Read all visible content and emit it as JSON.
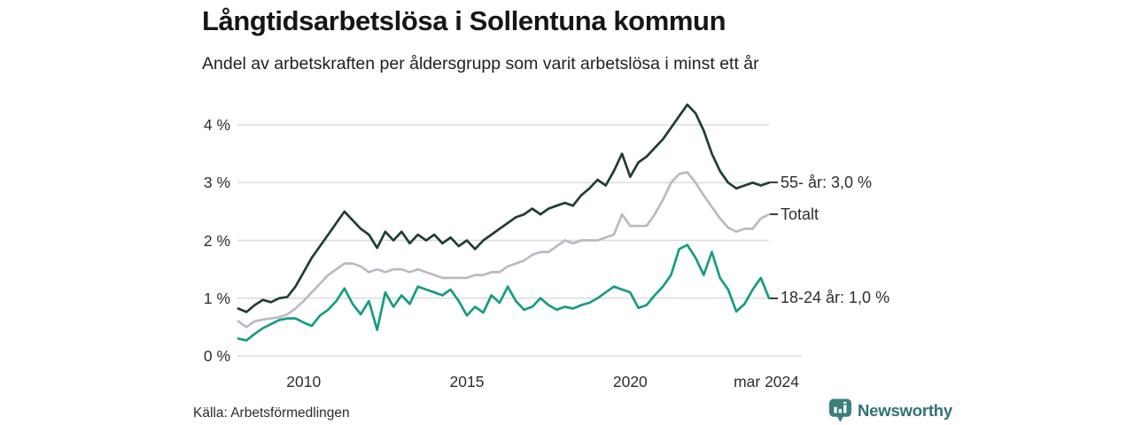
{
  "header": {
    "title": "Långtidsarbetslösa i Sollentuna kommun",
    "subtitle": "Andel av arbetskraften per åldersgrupp som varit arbetslösa i minst ett år"
  },
  "footer": {
    "source": "Källa: Arbetsförmedlingen",
    "brand": "Newsworthy"
  },
  "colors": {
    "brand_teal": "#3b7f7a",
    "wordmark_teal": "#2f7370",
    "grid": "#dcdcdc",
    "text": "#2e2e2e"
  },
  "chart_data": {
    "type": "line",
    "title": "Långtidsarbetslösa i Sollentuna kommun",
    "subtitle": "Andel av arbetskraften per åldersgrupp som varit arbetslösa i minst ett år",
    "x_unit": "decimal_year",
    "x_start": 2008.0,
    "x_step": 0.25,
    "x_range": [
      2008.0,
      2024.25
    ],
    "ylim": [
      0,
      4.4
    ],
    "grid": true,
    "legend_position": "line-end-labels-right",
    "y_ticks": [
      {
        "value": 0,
        "label": "0 %"
      },
      {
        "value": 1,
        "label": "1 %"
      },
      {
        "value": 2,
        "label": "2 %"
      },
      {
        "value": 3,
        "label": "3 %"
      },
      {
        "value": 4,
        "label": "4 %"
      }
    ],
    "x_ticks": [
      {
        "value": 2010,
        "label": "2010"
      },
      {
        "value": 2015,
        "label": "2015"
      },
      {
        "value": 2020,
        "label": "2020"
      },
      {
        "value": 2024.17,
        "label": "mar 2024"
      }
    ],
    "series": [
      {
        "id": "totalt",
        "name": "Totalt",
        "end_label": "Totalt",
        "color": "#b9bac4",
        "values": [
          0.6,
          0.5,
          0.6,
          0.63,
          0.65,
          0.67,
          0.72,
          0.82,
          0.95,
          1.1,
          1.25,
          1.4,
          1.5,
          1.6,
          1.6,
          1.55,
          1.45,
          1.5,
          1.45,
          1.5,
          1.5,
          1.45,
          1.5,
          1.45,
          1.4,
          1.35,
          1.35,
          1.35,
          1.35,
          1.4,
          1.4,
          1.45,
          1.45,
          1.55,
          1.6,
          1.65,
          1.75,
          1.8,
          1.8,
          1.9,
          2.0,
          1.95,
          2.0,
          2.0,
          2.0,
          2.05,
          2.1,
          2.45,
          2.25,
          2.25,
          2.25,
          2.45,
          2.7,
          3.0,
          3.15,
          3.18,
          3.0,
          2.78,
          2.58,
          2.38,
          2.22,
          2.15,
          2.2,
          2.2,
          2.38,
          2.45
        ]
      },
      {
        "id": "18-24",
        "name": "18-24 år",
        "end_label": "18-24 år: 1,0 %",
        "color": "#169c82",
        "values": [
          0.3,
          0.27,
          0.38,
          0.48,
          0.55,
          0.62,
          0.65,
          0.65,
          0.58,
          0.52,
          0.7,
          0.8,
          0.95,
          1.17,
          0.9,
          0.72,
          0.95,
          0.45,
          1.1,
          0.85,
          1.05,
          0.9,
          1.2,
          1.15,
          1.1,
          1.05,
          1.15,
          0.95,
          0.7,
          0.85,
          0.75,
          1.05,
          0.92,
          1.2,
          0.95,
          0.8,
          0.85,
          1.0,
          0.88,
          0.8,
          0.85,
          0.82,
          0.88,
          0.92,
          1.0,
          1.1,
          1.2,
          1.15,
          1.1,
          0.83,
          0.88,
          1.05,
          1.2,
          1.4,
          1.85,
          1.92,
          1.7,
          1.4,
          1.8,
          1.35,
          1.15,
          0.77,
          0.9,
          1.15,
          1.35,
          1.0
        ]
      },
      {
        "id": "55",
        "name": "55- år",
        "end_label": "55- år: 3,0 %",
        "color": "#213c38",
        "values": [
          0.82,
          0.76,
          0.88,
          0.97,
          0.93,
          1.0,
          1.02,
          1.2,
          1.45,
          1.7,
          1.9,
          2.1,
          2.3,
          2.5,
          2.35,
          2.2,
          2.1,
          1.87,
          2.15,
          2.0,
          2.15,
          1.95,
          2.1,
          2.0,
          2.1,
          1.95,
          2.05,
          1.9,
          2.0,
          1.85,
          2.0,
          2.1,
          2.2,
          2.3,
          2.4,
          2.45,
          2.55,
          2.45,
          2.55,
          2.6,
          2.65,
          2.6,
          2.78,
          2.9,
          3.05,
          2.95,
          3.2,
          3.5,
          3.1,
          3.35,
          3.45,
          3.6,
          3.75,
          3.95,
          4.15,
          4.35,
          4.2,
          3.9,
          3.5,
          3.2,
          3.0,
          2.9,
          2.95,
          3.0,
          2.95,
          3.0
        ]
      }
    ]
  }
}
